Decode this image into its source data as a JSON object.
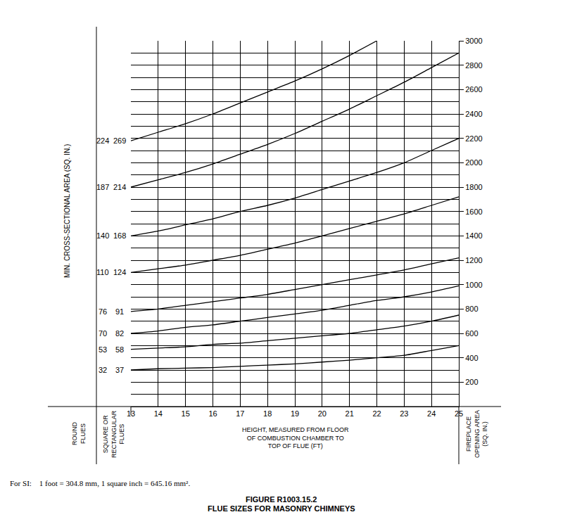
{
  "chart_data": {
    "type": "line",
    "title": "FIGURE R1003.15.2",
    "subtitle": "FLUE SIZES FOR MASONRY CHIMNEYS",
    "x_label": "HEIGHT, MEASURED FROM FLOOR\nOF COMBUSTION CHAMBER TO\nTOP OF FLUE (FT)",
    "y_label": "FIREPLACE\nOPENING AREA\n(SQ. IN.)",
    "left_label": "MIN. CROSS-SECTIONAL AREA (SQ. IN.)",
    "round_label": "ROUND\nFLUES",
    "square_label": "SQUARE OR\nRECTANGULAR\nFLUES",
    "note": "For SI:    1 foot = 304.8 mm, 1 square inch = 645.16 mm².",
    "x": [
      13,
      14,
      15,
      16,
      17,
      18,
      19,
      20,
      21,
      22,
      23,
      24,
      25
    ],
    "series": [
      {
        "round_flue": 224,
        "square_flue": 269,
        "color": "#000000",
        "values": [
          2180,
          2250,
          2320,
          2400,
          2490,
          2580,
          2670,
          2770,
          2880,
          3000,
          null,
          null,
          null
        ]
      },
      {
        "round_flue": 187,
        "square_flue": 214,
        "color": "#000000",
        "values": [
          1800,
          1860,
          1920,
          1990,
          2070,
          2150,
          2240,
          2340,
          2440,
          2550,
          2660,
          2780,
          2900
        ]
      },
      {
        "round_flue": 140,
        "square_flue": 168,
        "color": "#000000",
        "values": [
          1400,
          1440,
          1490,
          1540,
          1600,
          1650,
          1710,
          1780,
          1850,
          1920,
          2000,
          2100,
          2200
        ]
      },
      {
        "round_flue": 110,
        "square_flue": 124,
        "color": "#000000",
        "values": [
          1100,
          1130,
          1160,
          1200,
          1240,
          1290,
          1340,
          1400,
          1460,
          1520,
          1580,
          1650,
          1720
        ]
      },
      {
        "round_flue": 76,
        "square_flue": 91,
        "color": "#000000",
        "values": [
          780,
          800,
          830,
          860,
          890,
          920,
          960,
          1000,
          1040,
          1080,
          1120,
          1170,
          1220
        ]
      },
      {
        "round_flue": 70,
        "square_flue": 82,
        "color": "#000000",
        "values": [
          600,
          620,
          650,
          670,
          700,
          730,
          760,
          790,
          830,
          870,
          900,
          940,
          990
        ]
      },
      {
        "round_flue": 53,
        "square_flue": 58,
        "color": "#000000",
        "values": [
          470,
          480,
          490,
          510,
          520,
          540,
          560,
          580,
          600,
          630,
          660,
          700,
          750
        ]
      },
      {
        "round_flue": 32,
        "square_flue": 37,
        "color": "#000000",
        "values": [
          300,
          310,
          315,
          320,
          330,
          340,
          350,
          365,
          380,
          400,
          420,
          460,
          500
        ]
      }
    ],
    "xlim": [
      13,
      25
    ],
    "xticks": [
      13,
      14,
      15,
      16,
      17,
      18,
      19,
      20,
      21,
      22,
      23,
      24,
      25
    ],
    "ylim": [
      0,
      3000
    ],
    "yticks": [
      200,
      400,
      600,
      800,
      1000,
      1200,
      1400,
      1600,
      1800,
      2000,
      2200,
      2400,
      2600,
      2800,
      3000
    ],
    "grid": true
  }
}
